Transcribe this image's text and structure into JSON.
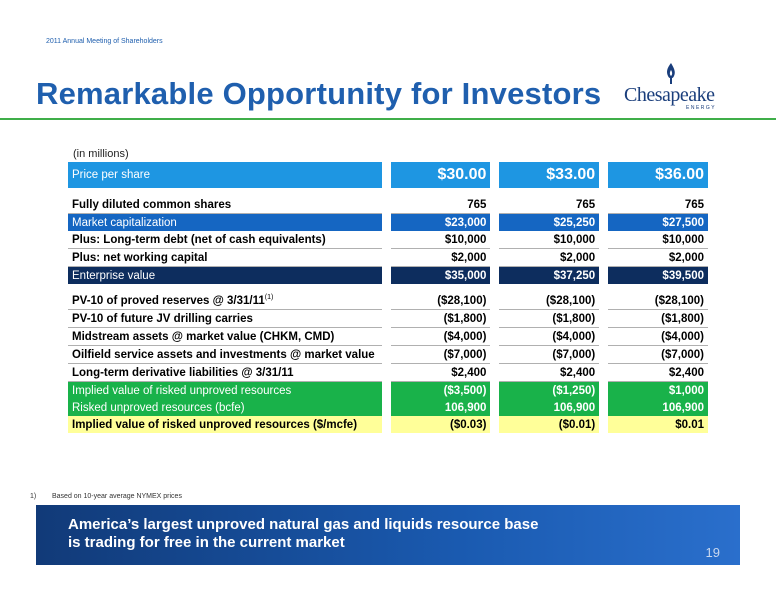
{
  "header": {
    "meeting_label": "2011 Annual Meeting of Shareholders",
    "title": "Remarkable Opportunity for Investors"
  },
  "logo": {
    "name": "Chesapeake",
    "subtitle": "ENERGY"
  },
  "table": {
    "units_note": "(in millions)",
    "rows": [
      {
        "label": "Price per share",
        "values": [
          "$30.00",
          "$33.00",
          "$36.00"
        ]
      },
      {
        "label": "Fully diluted common shares",
        "values": [
          "765",
          "765",
          "765"
        ]
      },
      {
        "label": "Market capitalization",
        "values": [
          "$23,000",
          "$25,250",
          "$27,500"
        ]
      },
      {
        "label": "Plus: Long-term debt (net of cash equivalents)",
        "values": [
          "$10,000",
          "$10,000",
          "$10,000"
        ]
      },
      {
        "label": "Plus: net working capital",
        "values": [
          "$2,000",
          "$2,000",
          "$2,000"
        ]
      },
      {
        "label": "Enterprise value",
        "values": [
          "$35,000",
          "$37,250",
          "$39,500"
        ]
      },
      {
        "label": "PV-10 of proved reserves @ 3/31/11",
        "sup": "(1)",
        "values": [
          "($28,100)",
          "($28,100)",
          "($28,100)"
        ]
      },
      {
        "label": "PV-10 of future JV drilling carries",
        "values": [
          "($1,800)",
          "($1,800)",
          "($1,800)"
        ]
      },
      {
        "label": "Midstream assets @ market value (CHKM, CMD)",
        "values": [
          "($4,000)",
          "($4,000)",
          "($4,000)"
        ]
      },
      {
        "label": "Oilfield service assets and investments @ market value",
        "values": [
          "($7,000)",
          "($7,000)",
          "($7,000)"
        ]
      },
      {
        "label": "Long-term derivative liabilities @ 3/31/11",
        "values": [
          "$2,400",
          "$2,400",
          "$2,400"
        ]
      },
      {
        "label": "Implied value of risked unproved resources",
        "values": [
          "($3,500)",
          "($1,250)",
          "$1,000"
        ]
      },
      {
        "label": "Risked unproved resources (bcfe)",
        "values": [
          "106,900",
          "106,900",
          "106,900"
        ]
      },
      {
        "label": "Implied value of risked unproved resources ($/mcfe)",
        "values": [
          "($0.03)",
          "($0.01)",
          "$0.01"
        ]
      }
    ]
  },
  "footnote": {
    "number": "1)",
    "text": "Based on 10-year average NYMEX prices"
  },
  "banner": {
    "line1": "America’s largest unproved natural gas and liquids resource base",
    "line2": "is trading for free in the current market",
    "page_number": "19"
  },
  "colors": {
    "brand_blue": "#1f5fae",
    "accent_green": "#3fae49",
    "price_row": "#1e96e2",
    "cap_row": "#1566c2",
    "ev_row": "#0d2d5e",
    "green_row": "#19b24a",
    "yellow_row": "#ffff99"
  }
}
